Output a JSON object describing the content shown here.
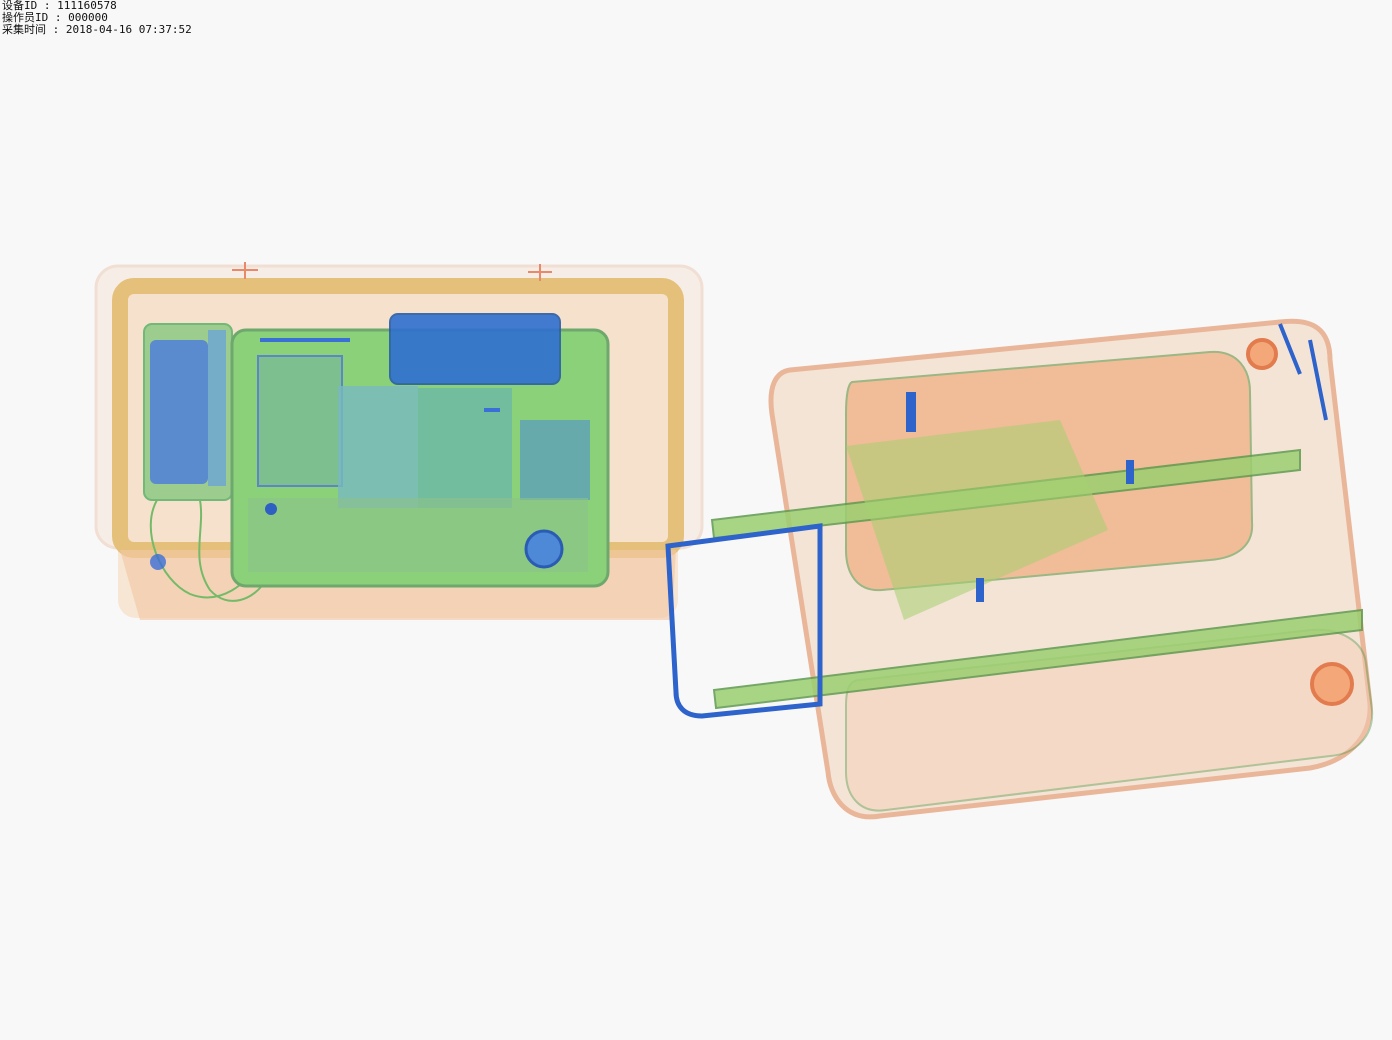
{
  "header": {
    "lines": [
      {
        "label": "设备ID",
        "separator": " : ",
        "value": "111160578"
      },
      {
        "label": "操作员ID",
        "separator": " : ",
        "value": "000000"
      },
      {
        "label": "采集时间",
        "separator": " : ",
        "value": "2018-04-16 07:37:52"
      }
    ]
  },
  "scan": {
    "colors": {
      "background": "#f8f8f8",
      "organic": "#f0a070",
      "mixed": "#8cc870",
      "inorganic": "#3a6fd8",
      "tray": "#e8c07a"
    },
    "objects": [
      "tray",
      "tablet",
      "phone",
      "luggage-bag"
    ]
  }
}
